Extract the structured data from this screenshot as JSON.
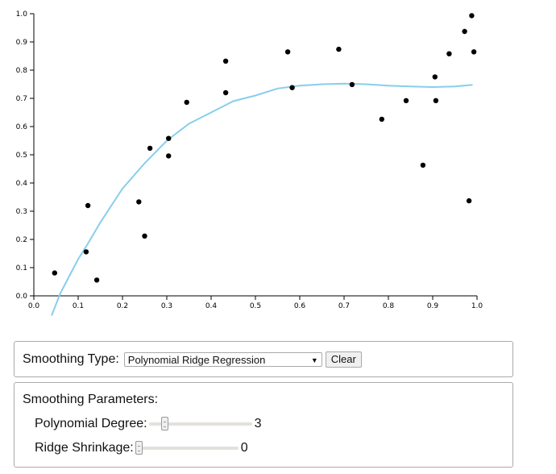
{
  "chart_data": {
    "type": "scatter",
    "title": "",
    "xlabel": "",
    "ylabel": "",
    "xlim": [
      0,
      1
    ],
    "ylim": [
      0,
      1
    ],
    "grid": false,
    "x_ticks": [
      "0.0",
      "0.1",
      "0.2",
      "0.3",
      "0.4",
      "0.5",
      "0.6",
      "0.7",
      "0.8",
      "0.9",
      "1.0"
    ],
    "y_ticks": [
      "0.0",
      "0.1",
      "0.2",
      "0.3",
      "0.4",
      "0.5",
      "0.6",
      "0.7",
      "0.8",
      "0.9",
      "1.0"
    ],
    "point_color": "#000000",
    "curve_color": "#87ceeb",
    "points": [
      {
        "x": 0.047,
        "y": 0.081
      },
      {
        "x": 0.118,
        "y": 0.156
      },
      {
        "x": 0.122,
        "y": 0.32
      },
      {
        "x": 0.142,
        "y": 0.056
      },
      {
        "x": 0.237,
        "y": 0.333
      },
      {
        "x": 0.25,
        "y": 0.212
      },
      {
        "x": 0.262,
        "y": 0.523
      },
      {
        "x": 0.304,
        "y": 0.558
      },
      {
        "x": 0.304,
        "y": 0.496
      },
      {
        "x": 0.345,
        "y": 0.686
      },
      {
        "x": 0.433,
        "y": 0.832
      },
      {
        "x": 0.433,
        "y": 0.72
      },
      {
        "x": 0.573,
        "y": 0.865
      },
      {
        "x": 0.583,
        "y": 0.738
      },
      {
        "x": 0.688,
        "y": 0.874
      },
      {
        "x": 0.718,
        "y": 0.749
      },
      {
        "x": 0.785,
        "y": 0.626
      },
      {
        "x": 0.84,
        "y": 0.692
      },
      {
        "x": 0.878,
        "y": 0.463
      },
      {
        "x": 0.905,
        "y": 0.776
      },
      {
        "x": 0.907,
        "y": 0.692
      },
      {
        "x": 0.937,
        "y": 0.858
      },
      {
        "x": 0.972,
        "y": 0.937
      },
      {
        "x": 0.982,
        "y": 0.337
      },
      {
        "x": 0.988,
        "y": 0.993
      },
      {
        "x": 0.993,
        "y": 0.865
      }
    ],
    "smoothed_curve": [
      {
        "x": 0.04,
        "y": -0.07
      },
      {
        "x": 0.06,
        "y": 0.01
      },
      {
        "x": 0.08,
        "y": 0.07
      },
      {
        "x": 0.1,
        "y": 0.13
      },
      {
        "x": 0.12,
        "y": 0.18
      },
      {
        "x": 0.15,
        "y": 0.26
      },
      {
        "x": 0.2,
        "y": 0.38
      },
      {
        "x": 0.25,
        "y": 0.47
      },
      {
        "x": 0.3,
        "y": 0.55
      },
      {
        "x": 0.35,
        "y": 0.61
      },
      {
        "x": 0.4,
        "y": 0.65
      },
      {
        "x": 0.45,
        "y": 0.69
      },
      {
        "x": 0.5,
        "y": 0.71
      },
      {
        "x": 0.55,
        "y": 0.735
      },
      {
        "x": 0.6,
        "y": 0.745
      },
      {
        "x": 0.65,
        "y": 0.75
      },
      {
        "x": 0.7,
        "y": 0.752
      },
      {
        "x": 0.75,
        "y": 0.75
      },
      {
        "x": 0.8,
        "y": 0.745
      },
      {
        "x": 0.85,
        "y": 0.742
      },
      {
        "x": 0.9,
        "y": 0.74
      },
      {
        "x": 0.95,
        "y": 0.742
      },
      {
        "x": 0.99,
        "y": 0.748
      }
    ]
  },
  "controls": {
    "smoothing_type_label": "Smoothing Type:",
    "smoothing_type_value": "Polynomial Ridge Regression",
    "clear_label": "Clear",
    "params_title": "Smoothing Parameters:",
    "degree_label": "Polynomial Degree:",
    "degree_value": "3",
    "degree_fraction": 0.13,
    "shrinkage_label": "Ridge Shrinkage:",
    "shrinkage_value": "0",
    "shrinkage_fraction": 0.0
  }
}
